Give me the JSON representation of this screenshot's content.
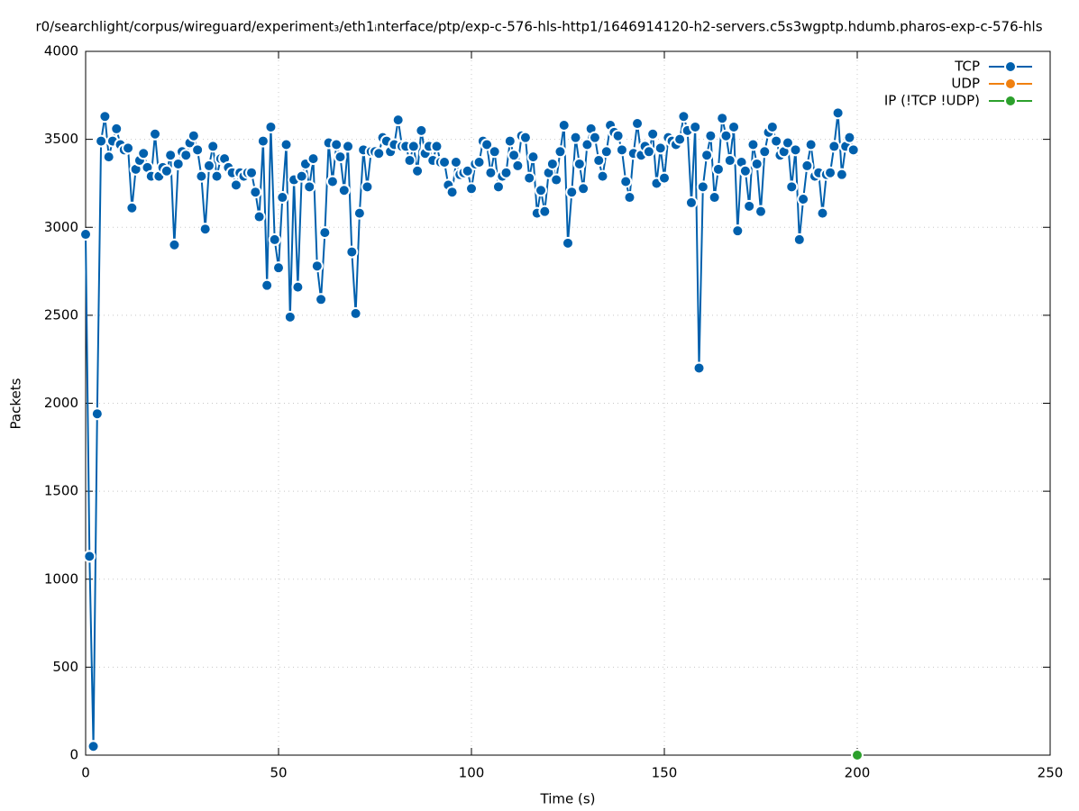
{
  "chart_data": {
    "type": "line",
    "title": "r0/searchlight/corpus/wireguard/experiment₃/eth1ᵢnterface/ptp/exp-c-576-hls-http1/1646914120-h2-servers.c5s3wgptp.hdumb.pharos-exp-c-576-hls",
    "xlabel": "Time (s)",
    "ylabel": "Packets",
    "xlim": [
      0,
      250
    ],
    "xticks": [
      0,
      50,
      100,
      150,
      200,
      250
    ],
    "ylim": [
      0,
      4000
    ],
    "yticks": [
      0,
      500,
      1000,
      1500,
      2000,
      2500,
      3000,
      3500,
      4000
    ],
    "grid": true,
    "legend": "top-right",
    "series": [
      {
        "name": "TCP",
        "color": "#0060ad",
        "x": [
          0,
          1,
          2,
          3,
          4,
          5,
          6,
          7,
          8,
          9,
          10,
          11,
          12,
          13,
          14,
          15,
          16,
          17,
          18,
          19,
          20,
          21,
          22,
          23,
          24,
          25,
          26,
          27,
          28,
          29,
          30,
          31,
          32,
          33,
          34,
          35,
          36,
          37,
          38,
          39,
          40,
          41,
          42,
          43,
          44,
          45,
          46,
          47,
          48,
          49,
          50,
          51,
          52,
          53,
          54,
          55,
          56,
          57,
          58,
          59,
          60,
          61,
          62,
          63,
          64,
          65,
          66,
          67,
          68,
          69,
          70,
          71,
          72,
          73,
          74,
          75,
          76,
          77,
          78,
          79,
          80,
          81,
          82,
          83,
          84,
          85,
          86,
          87,
          88,
          89,
          90,
          91,
          92,
          93,
          94,
          95,
          96,
          97,
          98,
          99,
          100,
          101,
          102,
          103,
          104,
          105,
          106,
          107,
          108,
          109,
          110,
          111,
          112,
          113,
          114,
          115,
          116,
          117,
          118,
          119,
          120,
          121,
          122,
          123,
          124,
          125,
          126,
          127,
          128,
          129,
          130,
          131,
          132,
          133,
          134,
          135,
          136,
          137,
          138,
          139,
          140,
          141,
          142,
          143,
          144,
          145,
          146,
          147,
          148,
          149,
          150,
          151,
          152,
          153,
          154,
          155,
          156,
          157,
          158,
          159,
          160,
          161,
          162,
          163,
          164,
          165,
          166,
          167,
          168,
          169,
          170,
          171,
          172,
          173,
          174,
          175,
          176,
          177,
          178,
          179,
          180,
          181,
          182,
          183,
          184,
          185,
          186,
          187,
          188,
          189,
          190,
          191,
          192,
          193,
          194,
          195,
          196,
          197,
          198,
          199
        ],
        "values": [
          2960,
          1130,
          50,
          1940,
          3490,
          3630,
          3400,
          3490,
          3560,
          3470,
          3440,
          3450,
          3110,
          3330,
          3380,
          3420,
          3340,
          3290,
          3530,
          3290,
          3340,
          3320,
          3410,
          2900,
          3360,
          3430,
          3410,
          3480,
          3520,
          3440,
          3290,
          2990,
          3350,
          3460,
          3290,
          3390,
          3390,
          3340,
          3310,
          3240,
          3310,
          3290,
          3310,
          3310,
          3200,
          3060,
          3490,
          2670,
          3570,
          2930,
          2770,
          3170,
          3470,
          2490,
          3270,
          2660,
          3290,
          3360,
          3230,
          3390,
          2780,
          2590,
          2970,
          3480,
          3260,
          3470,
          3400,
          3210,
          3460,
          2860,
          2510,
          3080,
          3440,
          3230,
          3430,
          3430,
          3420,
          3510,
          3490,
          3430,
          3470,
          3610,
          3460,
          3460,
          3380,
          3460,
          3320,
          3550,
          3420,
          3460,
          3380,
          3460,
          3370,
          3370,
          3240,
          3200,
          3370,
          3300,
          3310,
          3320,
          3220,
          3360,
          3370,
          3490,
          3470,
          3310,
          3430,
          3230,
          3290,
          3310,
          3490,
          3410,
          3350,
          3520,
          3510,
          3280,
          3400,
          3080,
          3210,
          3090,
          3310,
          3360,
          3270,
          3430,
          3580,
          2910,
          3200,
          3510,
          3360,
          3220,
          3470,
          3560,
          3510,
          3380,
          3290,
          3430,
          3580,
          3540,
          3520,
          3440,
          3260,
          3170,
          3420,
          3590,
          3410,
          3460,
          3430,
          3530,
          3250,
          3450,
          3280,
          3510,
          3490,
          3470,
          3500,
          3630,
          3550,
          3140,
          3570,
          2200,
          3230,
          3410,
          3520,
          3170,
          3330,
          3620,
          3520,
          3380,
          3570,
          2980,
          3370,
          3320,
          3120,
          3470,
          3360,
          3090,
          3430,
          3540,
          3570,
          3490,
          3410,
          3430,
          3480,
          3230,
          3440,
          2930,
          3160,
          3350,
          3470,
          3290,
          3310,
          3080,
          3300,
          3310,
          3460,
          3650,
          3300,
          3460,
          3510,
          3440
        ]
      },
      {
        "name": "UDP",
        "color": "#f0800f",
        "x": [
          200
        ],
        "values": [
          0
        ]
      },
      {
        "name": "IP (!TCP  !UDP)",
        "color": "#2ca02c",
        "x": [
          200
        ],
        "values": [
          0
        ]
      }
    ]
  }
}
